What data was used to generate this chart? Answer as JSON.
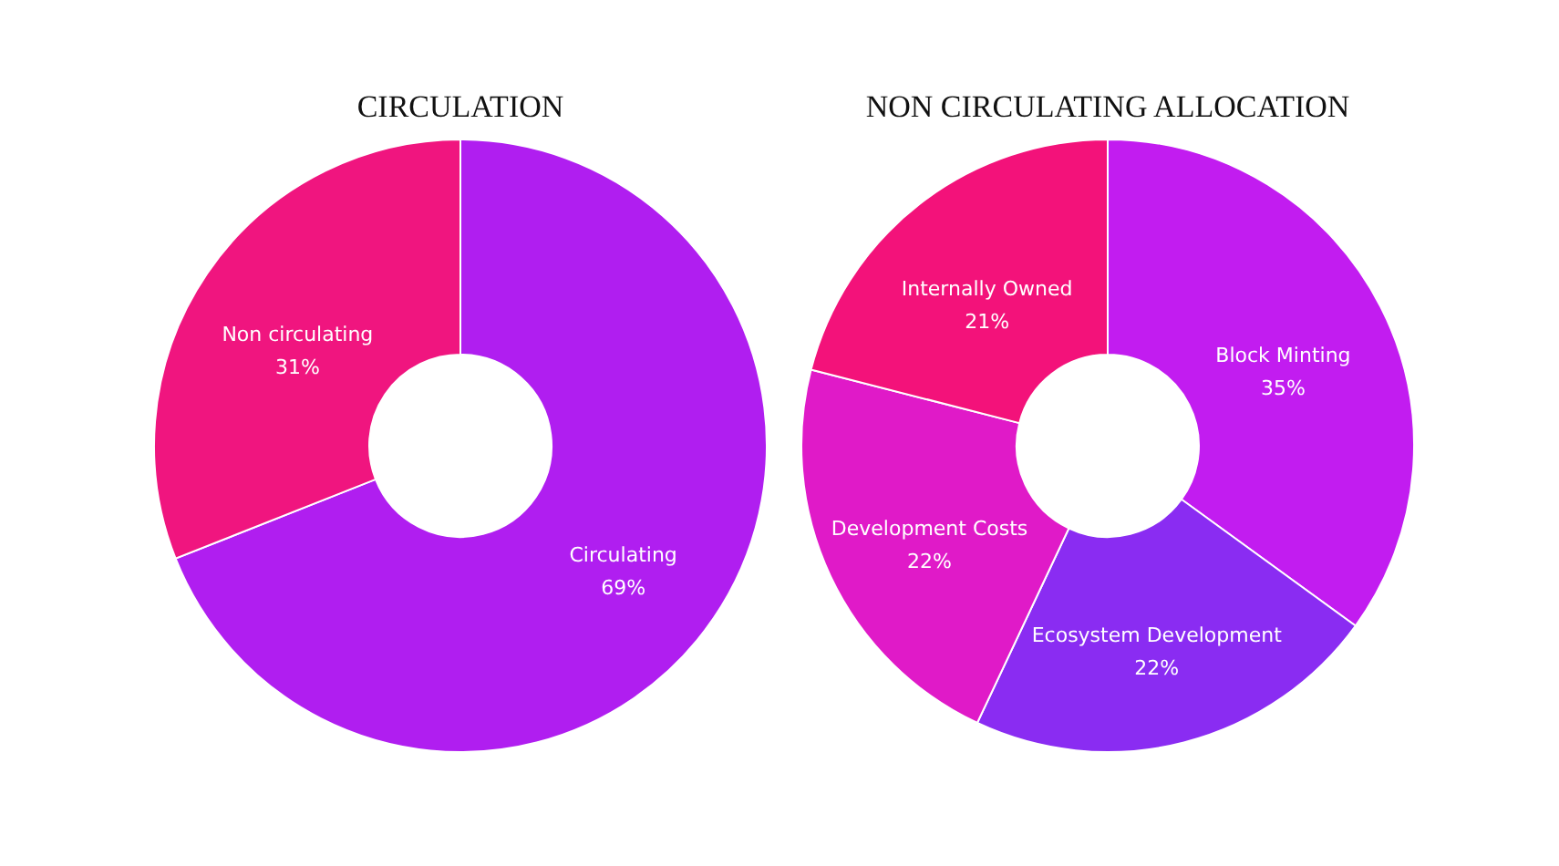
{
  "chart_data": [
    {
      "type": "donut",
      "title": "CIRCULATION",
      "categories": [
        "Circulating",
        "Non circulating"
      ],
      "values": [
        69,
        31
      ],
      "colors": [
        "#b01ef0",
        "#f0157f"
      ],
      "value_labels": [
        "69%",
        "31%"
      ],
      "legend": false
    },
    {
      "type": "donut",
      "title": "NON CIRCULATING ALLOCATION",
      "categories": [
        "Block Minting",
        "Ecosystem Development",
        "Development Costs",
        "Internally Owned"
      ],
      "values": [
        35,
        22,
        22,
        21
      ],
      "colors": [
        "#c21cf0",
        "#8a2cf2",
        "#e01ac8",
        "#f3127a"
      ],
      "value_labels": [
        "35%",
        "22%",
        "22%",
        "21%"
      ],
      "legend": false
    }
  ]
}
